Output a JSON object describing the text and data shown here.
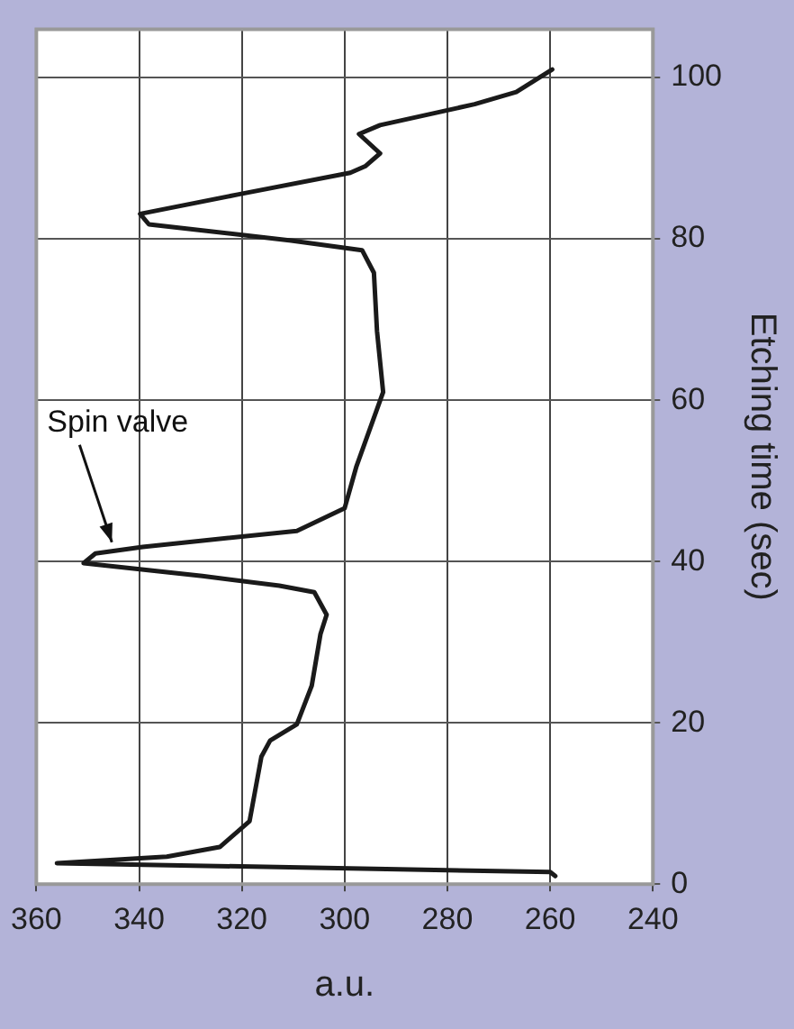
{
  "chart_data": {
    "type": "line",
    "xlabel": "a.u.",
    "ylabel": "Etching time (sec)",
    "x": [
      259,
      260,
      356,
      334.6,
      324.3,
      318.5,
      316.2,
      314.5,
      309.3,
      306.4,
      304.7,
      303.5,
      305.9,
      312.7,
      327.7,
      350.8,
      348.5,
      339.3,
      309.3,
      300,
      297.7,
      292.5,
      293.7,
      294.3,
      296.6,
      310.4,
      338.1,
      339.8,
      320.8,
      298.9,
      296,
      293.1,
      297.2,
      293.1,
      274.7,
      266.6,
      259.6
    ],
    "series": [
      {
        "color": "#1a1a1a",
        "values": [
          1,
          1.5,
          2.6,
          3.4,
          4.6,
          7.8,
          15.8,
          17.8,
          19.8,
          24.6,
          31,
          33.4,
          36.2,
          37,
          38.2,
          39.8,
          41,
          41.8,
          43.8,
          46.6,
          51.8,
          61,
          68.6,
          75.8,
          78.6,
          79.8,
          81.8,
          83.1,
          85.5,
          88.2,
          89,
          90.6,
          93,
          94.1,
          96.7,
          98.2,
          101
        ]
      }
    ],
    "xlim": [
      360,
      240
    ],
    "xticks": [
      360,
      340,
      320,
      300,
      280,
      260,
      240
    ],
    "ylim": [
      0,
      106
    ],
    "yticks": [
      0,
      20,
      40,
      60,
      80,
      100
    ],
    "grid": true,
    "legend": false,
    "marker": "none",
    "line_style": "solid",
    "annotations": [
      {
        "text": "Spin valve",
        "x": 346,
        "y": 41.5
      }
    ]
  }
}
